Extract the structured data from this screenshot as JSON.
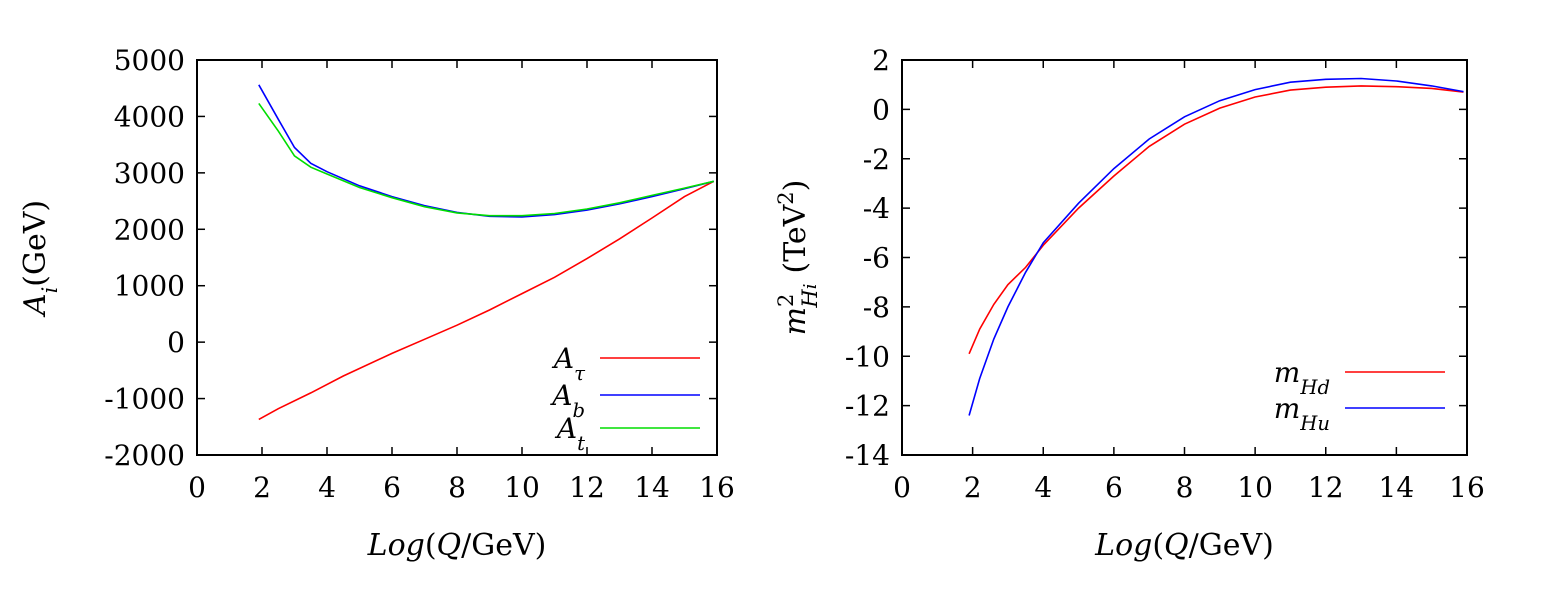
{
  "chart_data": [
    {
      "type": "line",
      "xlabel": "Log(Q/GeV)",
      "ylabel": "A_i(GeV)",
      "xlim": [
        0,
        16
      ],
      "ylim": [
        -2000,
        5000
      ],
      "xticks": [
        "0",
        "2",
        "4",
        "6",
        "8",
        "10",
        "12",
        "14",
        "16"
      ],
      "yticks": [
        "-2000",
        "-1000",
        "0",
        "1000",
        "2000",
        "3000",
        "4000",
        "5000"
      ],
      "legend_position": "bottom-right",
      "series": [
        {
          "name": "A_τ",
          "color": "#ff0000",
          "x": [
            1.9,
            2.5,
            3.5,
            4.5,
            6,
            7,
            8,
            9,
            10,
            11,
            12,
            13,
            14,
            15,
            15.9
          ],
          "y": [
            -1370,
            -1180,
            -900,
            -600,
            -200,
            50,
            300,
            570,
            860,
            1150,
            1480,
            1830,
            2200,
            2580,
            2850
          ]
        },
        {
          "name": "A_b",
          "color": "#0000ff",
          "x": [
            1.9,
            2.5,
            3,
            3.5,
            4,
            5,
            6,
            7,
            8,
            9,
            10,
            11,
            12,
            13,
            14,
            15,
            15.9
          ],
          "y": [
            4560,
            3950,
            3450,
            3170,
            3020,
            2770,
            2580,
            2420,
            2300,
            2230,
            2220,
            2260,
            2340,
            2450,
            2580,
            2720,
            2850
          ]
        },
        {
          "name": "A_t",
          "color": "#00dd00",
          "x": [
            1.9,
            2.5,
            3,
            3.5,
            4,
            5,
            6,
            7,
            8,
            9,
            10,
            11,
            12,
            13,
            14,
            15,
            15.9
          ],
          "y": [
            4230,
            3740,
            3300,
            3100,
            2980,
            2740,
            2560,
            2400,
            2290,
            2240,
            2240,
            2280,
            2360,
            2470,
            2600,
            2730,
            2850
          ]
        }
      ]
    },
    {
      "type": "line",
      "xlabel": "Log(Q/GeV)",
      "ylabel": "m²_{H_i} (TeV²)",
      "xlim": [
        0,
        16
      ],
      "ylim": [
        -14,
        2
      ],
      "xticks": [
        "0",
        "2",
        "4",
        "6",
        "8",
        "10",
        "12",
        "14",
        "16"
      ],
      "yticks": [
        "-14",
        "-12",
        "-10",
        "-8",
        "-6",
        "-4",
        "-2",
        "0",
        "2"
      ],
      "legend_position": "bottom-right",
      "series": [
        {
          "name": "m_{H_d}",
          "color": "#ff0000",
          "x": [
            1.9,
            2.2,
            2.6,
            3,
            3.5,
            4,
            5,
            6,
            7,
            8,
            9,
            10,
            11,
            12,
            13,
            14,
            15,
            15.9
          ],
          "y": [
            -9.9,
            -8.9,
            -7.9,
            -7.1,
            -6.4,
            -5.5,
            -4.0,
            -2.7,
            -1.5,
            -0.6,
            0.05,
            0.5,
            0.78,
            0.9,
            0.95,
            0.92,
            0.85,
            0.7
          ]
        },
        {
          "name": "m_{H_u}",
          "color": "#0000ff",
          "x": [
            1.9,
            2.2,
            2.6,
            3,
            3.5,
            4,
            5,
            6,
            7,
            8,
            9,
            10,
            11,
            12,
            13,
            14,
            15,
            15.9
          ],
          "y": [
            -12.4,
            -10.9,
            -9.3,
            -8.0,
            -6.6,
            -5.4,
            -3.8,
            -2.4,
            -1.2,
            -0.3,
            0.35,
            0.8,
            1.1,
            1.22,
            1.25,
            1.15,
            0.95,
            0.72
          ]
        }
      ]
    }
  ]
}
